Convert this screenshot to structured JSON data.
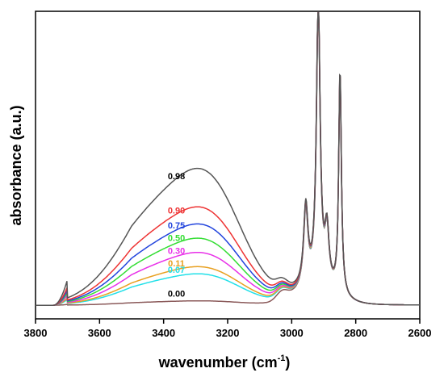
{
  "chart_data": {
    "type": "line",
    "xlabel": "wavenumber (cm",
    "xlabel_sup": "-1",
    "xlabel_end": ")",
    "ylabel": "absorbance (a.u.)",
    "xlim": [
      3800,
      2600
    ],
    "x_reversed": true,
    "y_ticks_shown": false,
    "xticks": [
      3800,
      3600,
      3400,
      3200,
      3000,
      2800,
      2600
    ],
    "grid": false,
    "series": [
      {
        "name": "0.00",
        "color": "#8b5a5a",
        "oh_amp": 0.015
      },
      {
        "name": "0.07",
        "color": "#22e0e8",
        "oh_amp": 0.11
      },
      {
        "name": "0.11",
        "color": "#e8a020",
        "oh_amp": 0.135
      },
      {
        "name": "0.30",
        "color": "#e830e8",
        "oh_amp": 0.185
      },
      {
        "name": "0.50",
        "color": "#33dd33",
        "oh_amp": 0.235
      },
      {
        "name": "0.75",
        "color": "#2244dd",
        "oh_amp": 0.285
      },
      {
        "name": "0.90",
        "color": "#ee3333",
        "oh_amp": 0.345
      },
      {
        "name": "0.98",
        "color": "#555555",
        "oh_amp": 0.48
      }
    ],
    "ch_peaks": [
      {
        "x": 2956,
        "height": 0.27
      },
      {
        "x": 2917,
        "height": 1.0
      },
      {
        "x": 2890,
        "height": 0.19
      },
      {
        "x": 2849,
        "height": 0.78
      }
    ]
  }
}
